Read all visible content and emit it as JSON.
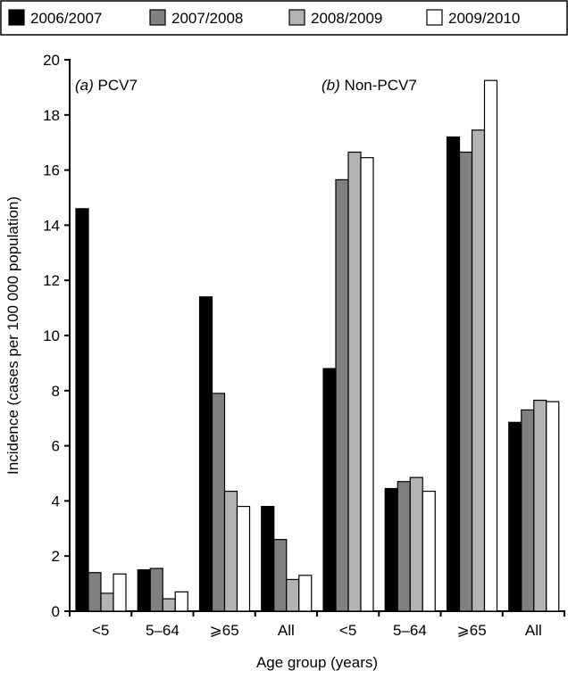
{
  "chart_data": {
    "type": "bar",
    "ylabel": "Incidence (cases per 100 000 population)",
    "xlabel": "Age group (years)",
    "ylim": [
      0,
      20
    ],
    "yticks": [
      "0",
      "2",
      "4",
      "6",
      "8",
      "10",
      "12",
      "14",
      "16",
      "18",
      "20"
    ],
    "grid": false,
    "legend_position": "top",
    "panels": [
      {
        "letter": "a",
        "title": "PCV7"
      },
      {
        "letter": "b",
        "title": "Non-PCV7"
      }
    ],
    "categories": [
      "<5",
      "5–64",
      "⩾65",
      "All",
      "<5",
      "5–64",
      "⩾65",
      "All"
    ],
    "category_panel": [
      "a",
      "a",
      "a",
      "a",
      "b",
      "b",
      "b",
      "b"
    ],
    "series": [
      {
        "name": "2006/2007",
        "color": "#000000",
        "values": [
          14.6,
          1.5,
          11.4,
          3.8,
          8.8,
          4.45,
          17.2,
          6.85
        ]
      },
      {
        "name": "2007/2008",
        "color": "#808080",
        "values": [
          1.4,
          1.55,
          7.9,
          2.6,
          15.65,
          4.7,
          16.65,
          7.3
        ]
      },
      {
        "name": "2008/2009",
        "color": "#b3b3b3",
        "values": [
          0.65,
          0.45,
          4.35,
          1.15,
          16.65,
          4.85,
          17.45,
          7.65
        ]
      },
      {
        "name": "2009/2010",
        "color": "#ffffff",
        "values": [
          1.35,
          0.7,
          3.8,
          1.3,
          16.45,
          4.35,
          19.25,
          7.6
        ]
      }
    ]
  }
}
